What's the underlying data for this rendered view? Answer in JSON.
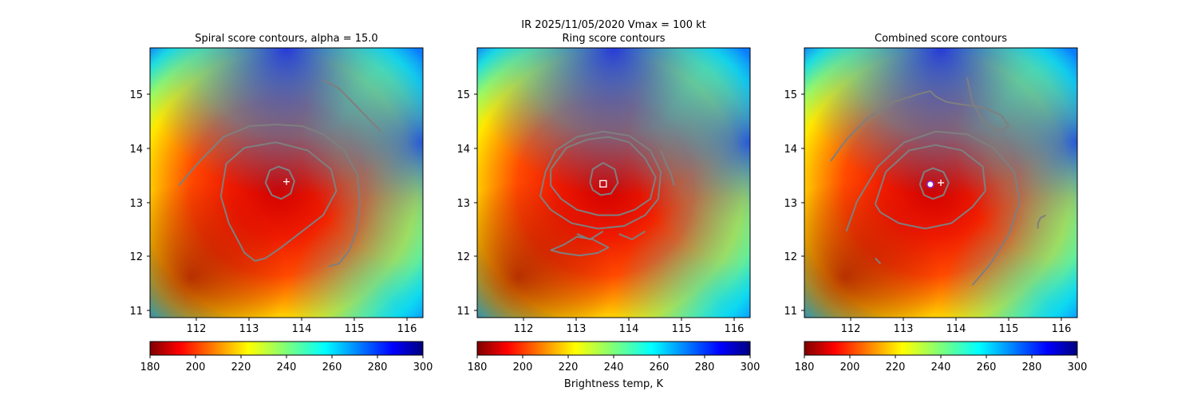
{
  "figure": {
    "suptitle": "IR  2025/11/05/2020    Vmax = 100 kt",
    "colorbar_label": "Brightness temp, K",
    "colormap": "jet_r",
    "colors": {
      "contour": "#7f7f7f",
      "marker_plus": "#ffffff",
      "marker_square": "#ffffff",
      "marker_circle": "#8a2be2"
    }
  },
  "chart_data": [
    {
      "type": "heatmap",
      "title": "Spiral score contours, alpha = 15.0",
      "xlim": [
        111.1,
        116.3
      ],
      "ylim": [
        10.85,
        15.85
      ],
      "xticks": [
        112,
        113,
        114,
        115,
        116
      ],
      "yticks": [
        11,
        12,
        13,
        14,
        15
      ],
      "center": [
        113.6,
        13.35
      ],
      "colorbar": {
        "min": 180,
        "max": 300,
        "ticks": [
          180,
          200,
          220,
          240,
          260,
          280,
          300
        ]
      },
      "markers": [
        {
          "type": "plus",
          "x": 113.7,
          "y": 13.37
        }
      ],
      "contours": [
        [
          [
            111.65,
            13.3
          ],
          [
            112.0,
            13.7
          ],
          [
            112.5,
            14.2
          ],
          [
            113.0,
            14.4
          ],
          [
            113.5,
            14.43
          ],
          [
            114.0,
            14.4
          ],
          [
            114.4,
            14.25
          ],
          [
            114.8,
            13.95
          ],
          [
            115.05,
            13.5
          ],
          [
            115.1,
            13.0
          ],
          [
            115.05,
            12.5
          ],
          [
            114.9,
            12.1
          ],
          [
            114.7,
            11.85
          ],
          [
            114.5,
            11.8
          ]
        ],
        [
          [
            113.1,
            11.9
          ],
          [
            112.9,
            12.05
          ],
          [
            112.6,
            12.6
          ],
          [
            112.45,
            13.1
          ],
          [
            112.55,
            13.7
          ],
          [
            112.9,
            14.0
          ],
          [
            113.5,
            14.1
          ],
          [
            114.1,
            13.95
          ],
          [
            114.55,
            13.6
          ],
          [
            114.65,
            13.2
          ],
          [
            114.4,
            12.75
          ],
          [
            114.0,
            12.45
          ],
          [
            113.6,
            12.15
          ],
          [
            113.3,
            11.95
          ],
          [
            113.1,
            11.9
          ]
        ],
        [
          [
            113.3,
            13.35
          ],
          [
            113.38,
            13.58
          ],
          [
            113.55,
            13.65
          ],
          [
            113.75,
            13.58
          ],
          [
            113.85,
            13.38
          ],
          [
            113.78,
            13.15
          ],
          [
            113.6,
            13.05
          ],
          [
            113.42,
            13.12
          ],
          [
            113.3,
            13.35
          ]
        ],
        [
          [
            114.4,
            15.25
          ],
          [
            114.7,
            15.1
          ],
          [
            115.0,
            14.8
          ],
          [
            115.3,
            14.5
          ],
          [
            115.5,
            14.3
          ]
        ]
      ]
    },
    {
      "type": "heatmap",
      "title": "Ring score contours",
      "xlim": [
        111.1,
        116.3
      ],
      "ylim": [
        10.85,
        15.85
      ],
      "xticks": [
        112,
        113,
        114,
        115,
        116
      ],
      "yticks": [
        11,
        12,
        13,
        14,
        15
      ],
      "center": [
        113.6,
        13.35
      ],
      "colorbar": {
        "min": 180,
        "max": 300,
        "ticks": [
          180,
          200,
          220,
          240,
          260,
          280,
          300
        ]
      },
      "markers": [
        {
          "type": "square",
          "x": 113.5,
          "y": 13.33
        }
      ],
      "contours": [
        [
          [
            112.5,
            13.6
          ],
          [
            112.8,
            14.0
          ],
          [
            113.2,
            14.15
          ],
          [
            113.6,
            14.2
          ],
          [
            114.0,
            14.1
          ],
          [
            114.3,
            13.8
          ],
          [
            114.5,
            13.45
          ],
          [
            114.4,
            13.05
          ],
          [
            114.1,
            12.85
          ],
          [
            113.8,
            12.75
          ],
          [
            113.4,
            12.75
          ],
          [
            113.0,
            12.85
          ],
          [
            112.7,
            13.05
          ],
          [
            112.5,
            13.3
          ],
          [
            112.5,
            13.6
          ]
        ],
        [
          [
            112.3,
            13.1
          ],
          [
            112.4,
            13.55
          ],
          [
            112.6,
            13.95
          ],
          [
            113.0,
            14.2
          ],
          [
            113.5,
            14.3
          ],
          [
            114.0,
            14.22
          ],
          [
            114.4,
            13.95
          ],
          [
            114.6,
            13.55
          ],
          [
            114.55,
            13.05
          ],
          [
            114.3,
            12.75
          ],
          [
            113.9,
            12.55
          ],
          [
            113.4,
            12.5
          ],
          [
            112.9,
            12.6
          ],
          [
            112.5,
            12.85
          ],
          [
            112.3,
            13.1
          ]
        ],
        [
          [
            113.25,
            13.35
          ],
          [
            113.3,
            13.6
          ],
          [
            113.5,
            13.72
          ],
          [
            113.72,
            13.6
          ],
          [
            113.78,
            13.35
          ],
          [
            113.65,
            13.15
          ],
          [
            113.45,
            13.12
          ],
          [
            113.3,
            13.22
          ],
          [
            113.25,
            13.35
          ]
        ],
        [
          [
            112.5,
            12.1
          ],
          [
            112.75,
            12.2
          ],
          [
            113.0,
            12.35
          ],
          [
            113.3,
            12.3
          ],
          [
            113.6,
            12.15
          ],
          [
            113.4,
            12.05
          ],
          [
            113.05,
            12.0
          ],
          [
            112.7,
            12.05
          ],
          [
            112.5,
            12.1
          ]
        ],
        [
          [
            114.6,
            13.95
          ],
          [
            114.7,
            13.7
          ],
          [
            114.8,
            13.5
          ],
          [
            114.85,
            13.3
          ]
        ],
        [
          [
            113.0,
            12.4
          ],
          [
            113.25,
            12.3
          ],
          [
            113.5,
            12.45
          ]
        ],
        [
          [
            113.8,
            12.4
          ],
          [
            114.05,
            12.3
          ],
          [
            114.3,
            12.45
          ]
        ]
      ]
    },
    {
      "type": "heatmap",
      "title": "Combined score contours",
      "xlim": [
        111.1,
        116.3
      ],
      "ylim": [
        10.85,
        15.85
      ],
      "xticks": [
        112,
        113,
        114,
        115,
        116
      ],
      "yticks": [
        11,
        12,
        13,
        14,
        15
      ],
      "center": [
        113.6,
        13.35
      ],
      "colorbar": {
        "min": 180,
        "max": 300,
        "ticks": [
          180,
          200,
          220,
          240,
          260,
          280,
          300
        ]
      },
      "markers": [
        {
          "type": "circle",
          "x": 113.5,
          "y": 13.32
        },
        {
          "type": "plus",
          "x": 113.7,
          "y": 13.35
        }
      ],
      "contours": [
        [
          [
            111.6,
            13.75
          ],
          [
            111.9,
            14.15
          ],
          [
            112.3,
            14.55
          ],
          [
            112.8,
            14.85
          ],
          [
            113.3,
            15.0
          ],
          [
            113.5,
            15.05
          ],
          [
            113.6,
            14.95
          ],
          [
            113.8,
            14.85
          ],
          [
            114.1,
            14.8
          ],
          [
            114.5,
            14.75
          ],
          [
            114.85,
            14.6
          ],
          [
            115.0,
            14.4
          ],
          [
            114.8,
            14.3
          ],
          [
            114.5,
            14.5
          ],
          [
            114.3,
            14.85
          ],
          [
            114.2,
            15.3
          ]
        ],
        [
          [
            111.9,
            12.45
          ],
          [
            112.1,
            13.0
          ],
          [
            112.5,
            13.65
          ],
          [
            113.0,
            14.1
          ],
          [
            113.6,
            14.3
          ],
          [
            114.2,
            14.25
          ],
          [
            114.7,
            14.0
          ],
          [
            115.1,
            13.55
          ],
          [
            115.2,
            13.0
          ],
          [
            115.0,
            12.4
          ],
          [
            114.65,
            11.85
          ],
          [
            114.3,
            11.45
          ]
        ],
        [
          [
            112.45,
            12.95
          ],
          [
            112.65,
            13.55
          ],
          [
            113.1,
            13.95
          ],
          [
            113.6,
            14.05
          ],
          [
            114.1,
            13.95
          ],
          [
            114.5,
            13.65
          ],
          [
            114.55,
            13.2
          ],
          [
            114.3,
            12.9
          ],
          [
            113.9,
            12.6
          ],
          [
            113.4,
            12.5
          ],
          [
            112.9,
            12.6
          ],
          [
            112.55,
            12.8
          ],
          [
            112.45,
            12.95
          ]
        ],
        [
          [
            113.3,
            13.32
          ],
          [
            113.38,
            13.55
          ],
          [
            113.55,
            13.62
          ],
          [
            113.75,
            13.55
          ],
          [
            113.85,
            13.35
          ],
          [
            113.75,
            13.12
          ],
          [
            113.55,
            13.05
          ],
          [
            113.38,
            13.12
          ],
          [
            113.3,
            13.32
          ]
        ],
        [
          [
            115.55,
            12.5
          ],
          [
            115.55,
            12.6
          ],
          [
            115.6,
            12.7
          ],
          [
            115.7,
            12.75
          ]
        ],
        [
          [
            112.45,
            11.95
          ],
          [
            112.55,
            11.85
          ]
        ]
      ]
    }
  ]
}
